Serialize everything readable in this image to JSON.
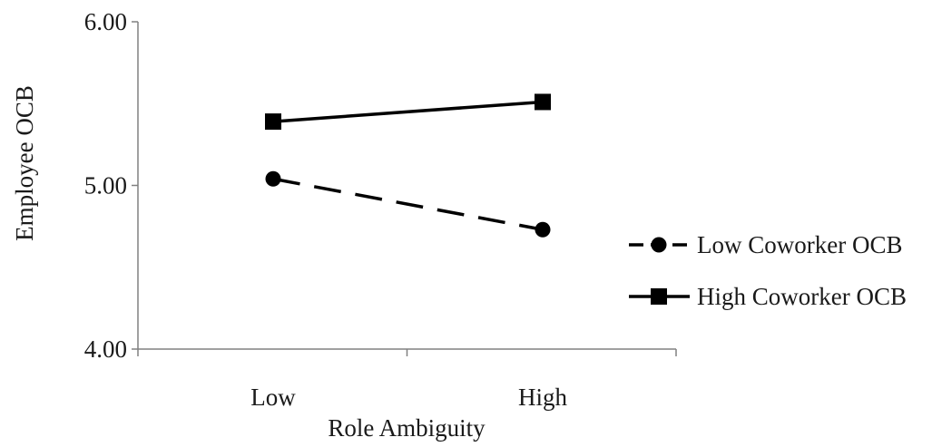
{
  "chart_data": {
    "type": "line",
    "title": "",
    "xlabel": "Role Ambiguity",
    "ylabel": "Employee OCB",
    "categories": [
      "Low",
      "High"
    ],
    "ylim": [
      4.0,
      6.0
    ],
    "yticks": [
      "4.00",
      "5.00",
      "6.00"
    ],
    "ytick_values": [
      4.0,
      5.0,
      6.0
    ],
    "grid": false,
    "legend_position": "right",
    "series": [
      {
        "name": "Low Coworker OCB",
        "values": [
          5.04,
          4.73
        ],
        "marker": "circle",
        "line_style": "dashed",
        "color": "#000000"
      },
      {
        "name": "High Coworker OCB",
        "values": [
          5.39,
          5.51
        ],
        "marker": "square",
        "line_style": "solid",
        "color": "#000000"
      }
    ]
  }
}
